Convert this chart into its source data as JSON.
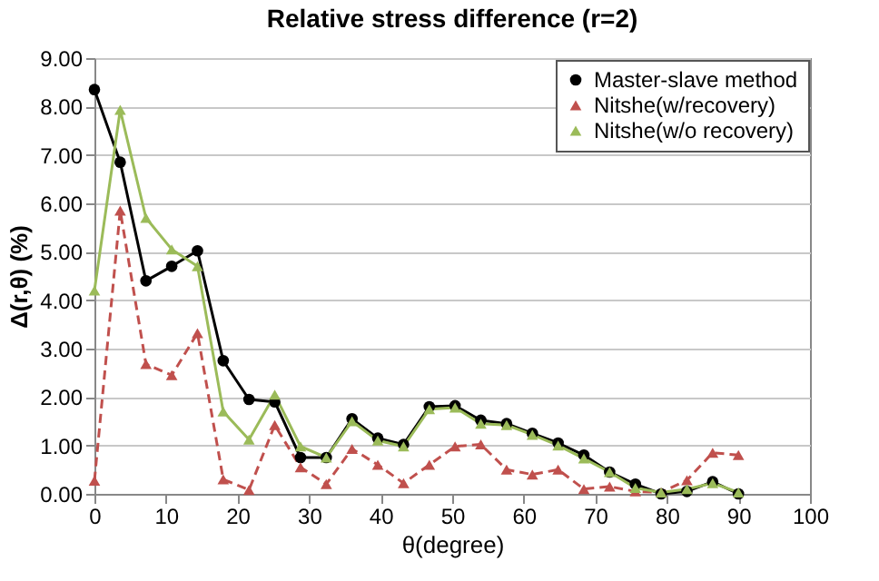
{
  "chart_data": {
    "type": "line",
    "title": "Relative stress difference (r=2)",
    "xlabel": "θ(degree)",
    "ylabel": "Δ(r,θ) (%)",
    "x": [
      0,
      3.6,
      7.2,
      10.8,
      14.4,
      18,
      21.6,
      25.2,
      28.8,
      32.4,
      36,
      39.6,
      43.2,
      46.8,
      50.4,
      54,
      57.6,
      61.2,
      64.8,
      68.4,
      72,
      75.6,
      79.2,
      82.8,
      86.4,
      90
    ],
    "series": [
      {
        "name": "Master-slave method",
        "color": "#000000",
        "marker": "circle",
        "line_style": "solid",
        "values": [
          8.35,
          6.85,
          4.4,
          4.7,
          5.02,
          2.75,
          1.95,
          1.9,
          0.75,
          0.75,
          1.55,
          1.15,
          1.02,
          1.8,
          1.82,
          1.52,
          1.45,
          1.25,
          1.05,
          0.8,
          0.45,
          0.2,
          0.0,
          0.05,
          0.25,
          0.0
        ]
      },
      {
        "name": "Nitshe(w/recovery)",
        "color": "#c0504d",
        "marker": "triangle",
        "line_style": "dashed",
        "values": [
          0.27,
          5.85,
          2.68,
          2.45,
          3.32,
          0.3,
          0.08,
          1.42,
          0.55,
          0.2,
          0.93,
          0.6,
          0.22,
          0.6,
          0.98,
          1.02,
          0.5,
          0.4,
          0.5,
          0.1,
          0.15,
          0.05,
          0.03,
          0.28,
          0.85,
          0.8
        ]
      },
      {
        "name": "Nitshe(w/o recovery)",
        "color": "#9bbb59",
        "marker": "triangle",
        "line_style": "solid",
        "values": [
          4.2,
          7.93,
          5.7,
          5.05,
          4.7,
          1.7,
          1.12,
          2.05,
          0.98,
          0.75,
          1.5,
          1.1,
          0.98,
          1.75,
          1.78,
          1.45,
          1.42,
          1.22,
          1.0,
          0.73,
          0.45,
          0.12,
          0.03,
          0.1,
          0.22,
          0.03
        ]
      }
    ],
    "xlim": [
      0,
      100
    ],
    "xticks": [
      0,
      10,
      20,
      30,
      40,
      50,
      60,
      70,
      80,
      90,
      100
    ],
    "ylim": [
      0,
      9
    ],
    "yticks": [
      {
        "value": 0,
        "label": "0.00"
      },
      {
        "value": 1,
        "label": "1.00"
      },
      {
        "value": 2,
        "label": "2.00"
      },
      {
        "value": 3,
        "label": "3.00"
      },
      {
        "value": 4,
        "label": "4.00"
      },
      {
        "value": 5,
        "label": "5.00"
      },
      {
        "value": 6,
        "label": "6.00"
      },
      {
        "value": 7,
        "label": "7.00"
      },
      {
        "value": 8,
        "label": "8.00"
      },
      {
        "value": 9,
        "label": "9.00"
      }
    ],
    "grid": "y",
    "legend": "top right"
  }
}
